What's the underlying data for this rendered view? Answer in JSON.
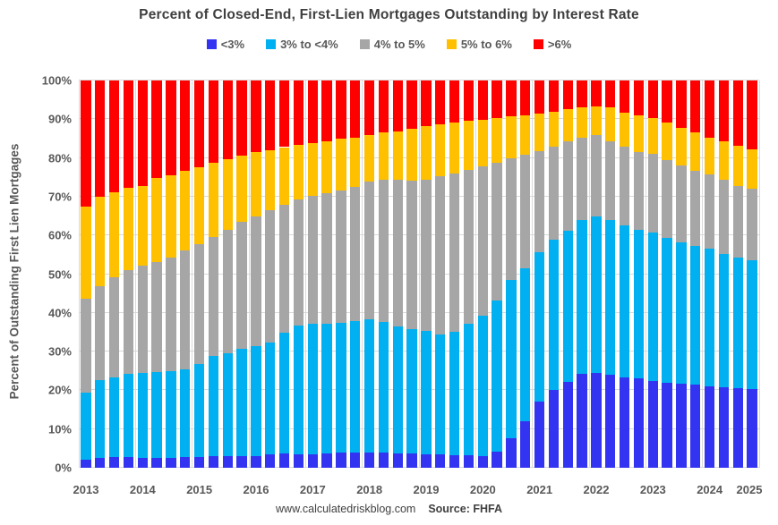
{
  "title": "Percent of Closed-End, First-Lien Mortgages Outstanding by Interest Rate",
  "footer": {
    "site": "www.calculatedriskblog.com",
    "source": "Source: FHFA"
  },
  "y_axis": {
    "label": "Percent of Outstanding First Lien Mortgages",
    "ticks": [
      "100%",
      "90%",
      "80%",
      "70%",
      "60%",
      "50%",
      "40%",
      "30%",
      "20%",
      "10%",
      "0%"
    ]
  },
  "x_axis": {
    "ticks": [
      "2013",
      "2014",
      "2015",
      "2016",
      "2017",
      "2018",
      "2019",
      "2020",
      "2021",
      "2022",
      "2023",
      "2024",
      "2025"
    ]
  },
  "legend": [
    {
      "label": "<3%",
      "color": "#3333f2"
    },
    {
      "label": "3% to <4%",
      "color": "#00b0f0"
    },
    {
      "label": "4% to 5%",
      "color": "#a6a6a6"
    },
    {
      "label": "5% to 6%",
      "color": "#ffc000"
    },
    {
      "label": ">6%",
      "color": "#ff0000"
    }
  ],
  "colors": {
    "grid": "#d9d9d9",
    "text": "#595959",
    "title_text": "#3f3f3f",
    "background": "#ffffff"
  },
  "chart_data": {
    "type": "bar",
    "stacked": true,
    "grid": true,
    "legend_position": "top",
    "ylim": [
      0,
      100
    ],
    "y_unit": "percent",
    "categories": [
      "2013 Q1",
      "2013 Q2",
      "2013 Q3",
      "2013 Q4",
      "2014 Q1",
      "2014 Q2",
      "2014 Q3",
      "2014 Q4",
      "2015 Q1",
      "2015 Q2",
      "2015 Q3",
      "2015 Q4",
      "2016 Q1",
      "2016 Q2",
      "2016 Q3",
      "2016 Q4",
      "2017 Q1",
      "2017 Q2",
      "2017 Q3",
      "2017 Q4",
      "2018 Q1",
      "2018 Q2",
      "2018 Q3",
      "2018 Q4",
      "2019 Q1",
      "2019 Q2",
      "2019 Q3",
      "2019 Q4",
      "2020 Q1",
      "2020 Q2",
      "2020 Q3",
      "2020 Q4",
      "2021 Q1",
      "2021 Q2",
      "2021 Q3",
      "2021 Q4",
      "2022 Q1",
      "2022 Q2",
      "2022 Q3",
      "2022 Q4",
      "2023 Q1",
      "2023 Q2",
      "2023 Q3",
      "2023 Q4",
      "2024 Q1",
      "2024 Q2",
      "2024 Q3",
      "2024 Q4"
    ],
    "series": [
      {
        "name": "<3%",
        "color": "#3333f2",
        "values": [
          2.0,
          2.5,
          2.8,
          2.8,
          2.6,
          2.6,
          2.6,
          2.8,
          2.8,
          2.9,
          2.9,
          3.1,
          3.1,
          3.4,
          3.6,
          3.5,
          3.5,
          3.8,
          3.9,
          4.0,
          4.0,
          3.9,
          3.8,
          3.6,
          3.5,
          3.4,
          3.3,
          3.2,
          3.0,
          4.2,
          7.6,
          12.0,
          17.0,
          20.0,
          22.2,
          24.3,
          24.5,
          24.0,
          23.4,
          23.0,
          22.5,
          22.0,
          21.6,
          21.4,
          21.1,
          20.8,
          20.5,
          20.3
        ]
      },
      {
        "name": "3% to <4%",
        "color": "#00b0f0",
        "values": [
          17.3,
          20.1,
          20.6,
          21.4,
          21.9,
          22.1,
          22.3,
          22.7,
          24.0,
          25.9,
          26.6,
          27.7,
          28.4,
          29.0,
          31.3,
          33.3,
          33.6,
          33.4,
          33.6,
          33.8,
          34.4,
          33.7,
          32.8,
          32.1,
          31.8,
          30.9,
          31.7,
          34.0,
          36.3,
          39.0,
          41.0,
          39.6,
          38.7,
          38.8,
          39.0,
          39.7,
          40.5,
          40.0,
          39.3,
          38.5,
          38.3,
          37.4,
          36.6,
          35.8,
          35.4,
          34.5,
          33.8,
          33.2
        ]
      },
      {
        "name": "4% to 5%",
        "color": "#a6a6a6",
        "values": [
          24.3,
          24.2,
          25.9,
          26.9,
          27.6,
          28.5,
          29.3,
          30.6,
          31.0,
          30.7,
          32.0,
          32.6,
          33.4,
          34.1,
          32.9,
          32.5,
          33.2,
          33.6,
          34.0,
          34.8,
          35.4,
          36.7,
          37.8,
          38.5,
          39.1,
          41.0,
          40.9,
          39.6,
          38.5,
          35.6,
          31.2,
          29.2,
          26.1,
          24.2,
          23.0,
          21.3,
          20.9,
          20.3,
          20.1,
          20.1,
          20.3,
          20.0,
          19.8,
          19.4,
          19.2,
          19.0,
          18.5,
          18.5
        ]
      },
      {
        "name": "5% to 6%",
        "color": "#ffc000",
        "values": [
          23.9,
          23.1,
          21.9,
          21.1,
          20.7,
          21.7,
          21.3,
          20.5,
          19.8,
          19.3,
          18.2,
          17.3,
          16.6,
          15.6,
          15.0,
          14.1,
          13.5,
          13.5,
          13.4,
          12.7,
          12.1,
          12.2,
          12.4,
          13.4,
          13.8,
          13.5,
          13.3,
          12.7,
          12.1,
          11.5,
          10.9,
          10.3,
          9.7,
          9.0,
          8.3,
          7.7,
          7.5,
          8.7,
          8.9,
          9.4,
          9.2,
          9.8,
          9.8,
          10.0,
          9.6,
          10.0,
          10.4,
          10.2
        ]
      },
      {
        "name": ">6%",
        "color": "#ff0000",
        "values": [
          32.5,
          30.1,
          28.8,
          27.8,
          27.2,
          25.1,
          24.5,
          23.4,
          22.4,
          21.2,
          20.3,
          19.3,
          18.5,
          17.9,
          17.2,
          16.6,
          16.2,
          15.7,
          15.1,
          14.7,
          14.1,
          13.5,
          13.2,
          12.4,
          11.8,
          11.2,
          10.8,
          10.5,
          10.1,
          9.7,
          9.3,
          8.9,
          8.5,
          8.0,
          7.5,
          7.0,
          6.6,
          7.0,
          8.3,
          9.0,
          9.7,
          10.8,
          12.2,
          13.4,
          14.7,
          15.7,
          16.8,
          17.8
        ]
      }
    ]
  }
}
